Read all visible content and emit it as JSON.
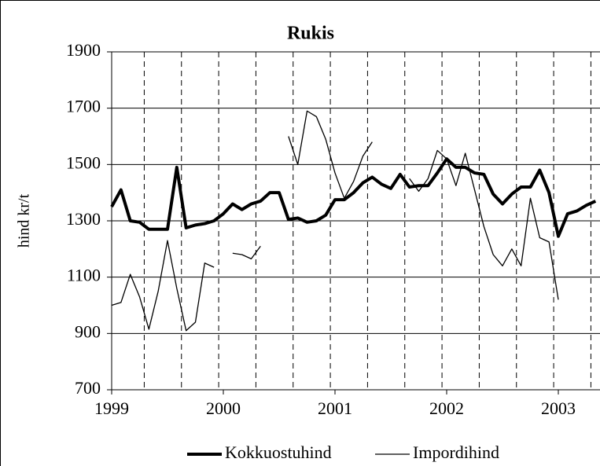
{
  "chart_data": {
    "type": "line",
    "title": "Rukis",
    "y_label": "hind kr/t",
    "categories": [
      "1999",
      null,
      null,
      null,
      null,
      null,
      null,
      null,
      null,
      null,
      null,
      null,
      "2000",
      null,
      null,
      null,
      null,
      null,
      null,
      null,
      null,
      null,
      null,
      null,
      "2001",
      null,
      null,
      null,
      null,
      null,
      null,
      null,
      null,
      null,
      null,
      null,
      "2002",
      null,
      null,
      null,
      null,
      null,
      null,
      null,
      null,
      null,
      null,
      null,
      "2003",
      null,
      null,
      null,
      null
    ],
    "series": [
      {
        "name": "Kokkuostuhind",
        "color": "#000000",
        "width": 4,
        "values": [
          1350,
          1410,
          1300,
          1295,
          1270,
          1270,
          1270,
          1490,
          1275,
          1285,
          1290,
          1300,
          1325,
          1360,
          1340,
          1360,
          1370,
          1400,
          1400,
          1305,
          1310,
          1295,
          1300,
          1320,
          1375,
          1375,
          1400,
          1435,
          1455,
          1430,
          1415,
          1465,
          1420,
          1425,
          1425,
          1470,
          1520,
          1490,
          1490,
          1470,
          1465,
          1395,
          1360,
          1395,
          1420,
          1420,
          1480,
          1400,
          1245,
          1325,
          1335,
          1355,
          1370
        ]
      },
      {
        "name": "Impordihind",
        "color": "#000000",
        "width": 1.3,
        "values": [
          1000,
          1010,
          1110,
          1030,
          915,
          1050,
          1230,
          1060,
          910,
          940,
          1150,
          1135,
          null,
          1185,
          1180,
          1165,
          1210,
          null,
          null,
          1600,
          1500,
          1690,
          1670,
          1590,
          1470,
          1380,
          1440,
          1530,
          1580,
          null,
          null,
          null,
          1450,
          1405,
          1450,
          1550,
          1520,
          1425,
          1540,
          1410,
          1280,
          1180,
          1140,
          1200,
          1140,
          1380,
          1240,
          1225,
          1020,
          null,
          null,
          null,
          null
        ]
      }
    ],
    "ylim": [
      700,
      1900
    ],
    "yticks": [
      700,
      900,
      1100,
      1300,
      1500,
      1700,
      1900
    ],
    "grid": true,
    "legend": "bottom"
  }
}
